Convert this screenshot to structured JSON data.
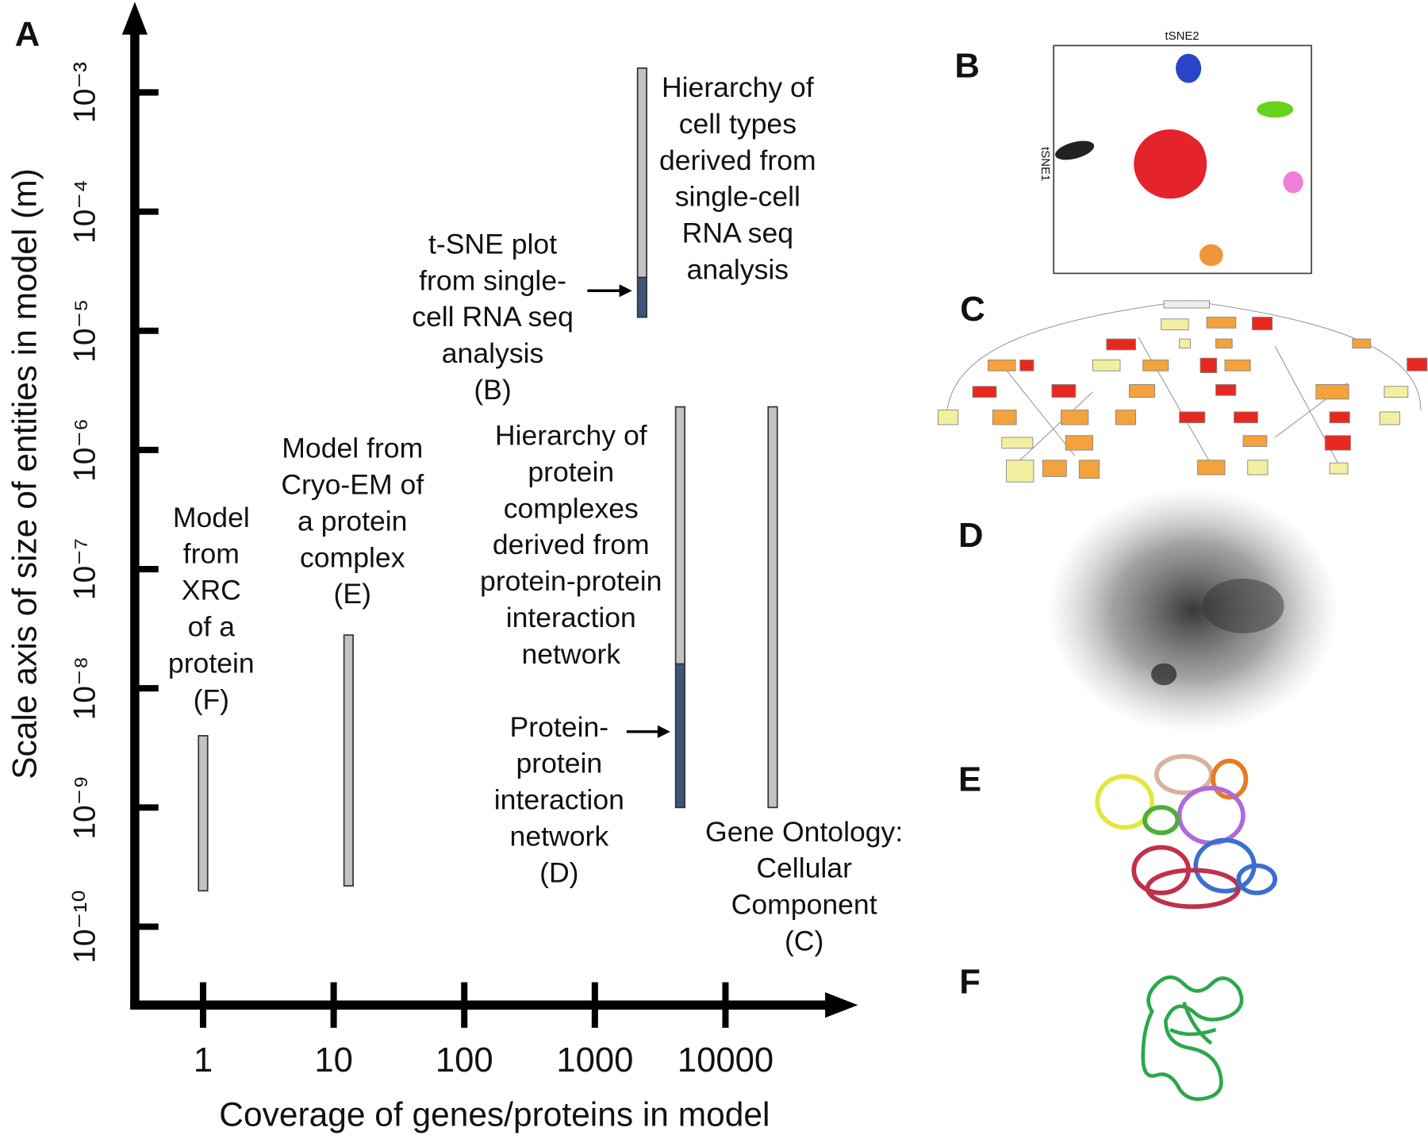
{
  "chart_data": {
    "type": "range-bar",
    "panel_label": "A",
    "x_label": "Coverage of genes/proteins in model",
    "y_label": "Scale axis of size of entities in model (m)",
    "xscale": "log",
    "yscale": "log",
    "xlim": [
      0.3,
      100000
    ],
    "ylim": [
      2.2e-11,
      0.005
    ],
    "xticks": [
      1,
      10,
      100,
      1000,
      10000
    ],
    "yticks": [
      {
        "value": 0.001,
        "label": "10⁻³"
      },
      {
        "value": 0.0001,
        "label": "10⁻⁴"
      },
      {
        "value": 1e-05,
        "label": "10⁻⁵"
      },
      {
        "value": 1e-06,
        "label": "10⁻⁶"
      },
      {
        "value": 1e-07,
        "label": "10⁻⁷"
      },
      {
        "value": 1e-08,
        "label": "10⁻⁸"
      },
      {
        "value": 1e-09,
        "label": "10⁻⁹"
      },
      {
        "value": 1e-10,
        "label": "10⁻¹⁰"
      }
    ],
    "bars": [
      {
        "x": 1,
        "segments": [
          {
            "low": 2e-10,
            "high": 4e-09,
            "color": "#c2c2c2",
            "label": [
              "Model",
              "from",
              "XRC",
              "of a",
              "protein",
              "(F)"
            ]
          }
        ]
      },
      {
        "x": 13,
        "segments": [
          {
            "low": 2.2e-10,
            "high": 2.8e-08,
            "color": "#c2c2c2",
            "label": [
              "Model from",
              "Cryo-EM of",
              "a protein",
              "complex",
              "(E)"
            ]
          }
        ]
      },
      {
        "x": 2300,
        "segments": [
          {
            "low": 2.8e-05,
            "high": 0.0016,
            "color": "#c2c2c2",
            "label": [
              "Hierarchy of",
              "cell types",
              "derived from",
              "single-cell",
              "RNA seq",
              "analysis"
            ]
          },
          {
            "low": 1.3e-05,
            "high": 2.8e-05,
            "color": "#3e5578",
            "label": [
              "t-SNE plot",
              "from single-",
              "cell RNA seq",
              "analysis",
              "(B)"
            ]
          }
        ]
      },
      {
        "x": 4500,
        "segments": [
          {
            "low": 1.6e-08,
            "high": 2.3e-06,
            "color": "#c2c2c2",
            "label": [
              "Hierarchy of",
              "protein",
              "complexes",
              "derived from",
              "protein-protein",
              "interaction",
              "network"
            ]
          },
          {
            "low": 1e-09,
            "high": 1.6e-08,
            "color": "#3e5578",
            "label": [
              "Protein-",
              "protein",
              "interaction",
              "network",
              "(D)"
            ]
          }
        ]
      },
      {
        "x": 23000,
        "segments": [
          {
            "low": 1e-09,
            "high": 2.3e-06,
            "color": "#c2c2c2",
            "label": [
              "Gene Ontology:",
              "Cellular",
              "Component",
              "(C)"
            ]
          }
        ]
      }
    ]
  },
  "panels": [
    {
      "label": "B",
      "x_axis": "tSNE2",
      "y_axis": "tSNE1"
    },
    {
      "label": "C"
    },
    {
      "label": "D"
    },
    {
      "label": "E"
    },
    {
      "label": "F"
    }
  ]
}
